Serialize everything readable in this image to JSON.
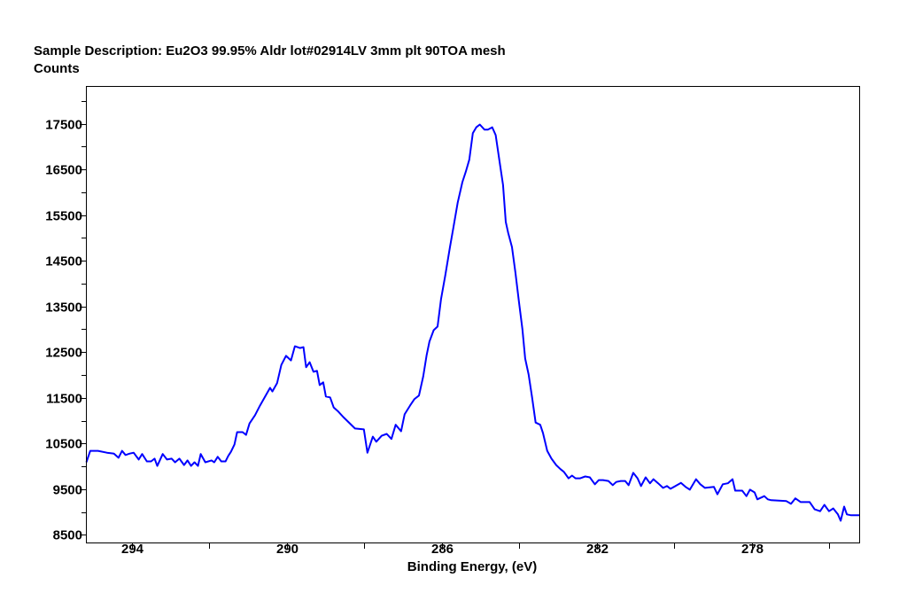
{
  "chart_data": {
    "type": "line",
    "title": "Sample Description:  Eu2O3 99.95% Aldr lot#02914LV 3mm plt 90TOA mesh",
    "ylabel": "Counts",
    "xlabel": "Binding Energy, (eV)",
    "xlim": [
      295.17,
      275.22
    ],
    "ylim": [
      8325,
      18315
    ],
    "x_ticks": [
      294,
      290,
      286,
      282,
      278
    ],
    "x_tick_labels": [
      "294",
      "290",
      "286",
      "282",
      "278"
    ],
    "x_minor_ticks": [
      292,
      288,
      284,
      280,
      276
    ],
    "y_ticks": [
      8500,
      9500,
      10500,
      11500,
      12500,
      13500,
      14500,
      15500,
      16500,
      17500
    ],
    "y_tick_labels": [
      "8500",
      "9500",
      "10500",
      "11500",
      "12500",
      "13500",
      "14500",
      "15500",
      "16500",
      "17500"
    ],
    "y_minor_ticks": [
      9000,
      10000,
      11000,
      12000,
      13000,
      14000,
      15000,
      16000,
      17000,
      18000
    ],
    "grid": false,
    "line_color": "#0000ff",
    "series": [
      {
        "name": "Eu2O3",
        "points": [
          [
            295.17,
            10090
          ],
          [
            295.07,
            10340
          ],
          [
            294.87,
            10340
          ],
          [
            294.64,
            10300
          ],
          [
            294.46,
            10280
          ],
          [
            294.34,
            10190
          ],
          [
            294.25,
            10340
          ],
          [
            294.16,
            10250
          ],
          [
            294.05,
            10280
          ],
          [
            293.95,
            10300
          ],
          [
            293.82,
            10150
          ],
          [
            293.73,
            10270
          ],
          [
            293.61,
            10110
          ],
          [
            293.5,
            10110
          ],
          [
            293.41,
            10170
          ],
          [
            293.34,
            10010
          ],
          [
            293.2,
            10270
          ],
          [
            293.09,
            10150
          ],
          [
            292.97,
            10170
          ],
          [
            292.88,
            10090
          ],
          [
            292.77,
            10170
          ],
          [
            292.65,
            10030
          ],
          [
            292.56,
            10130
          ],
          [
            292.47,
            10010
          ],
          [
            292.38,
            10090
          ],
          [
            292.29,
            10010
          ],
          [
            292.22,
            10270
          ],
          [
            292.1,
            10090
          ],
          [
            291.94,
            10130
          ],
          [
            291.87,
            10090
          ],
          [
            291.78,
            10210
          ],
          [
            291.69,
            10110
          ],
          [
            291.58,
            10110
          ],
          [
            291.51,
            10230
          ],
          [
            291.44,
            10320
          ],
          [
            291.35,
            10480
          ],
          [
            291.28,
            10750
          ],
          [
            291.14,
            10750
          ],
          [
            291.05,
            10690
          ],
          [
            290.96,
            10940
          ],
          [
            290.82,
            11120
          ],
          [
            290.69,
            11330
          ],
          [
            290.57,
            11510
          ],
          [
            290.43,
            11720
          ],
          [
            290.37,
            11640
          ],
          [
            290.25,
            11820
          ],
          [
            290.14,
            12220
          ],
          [
            290.02,
            12420
          ],
          [
            289.89,
            12320
          ],
          [
            289.79,
            12630
          ],
          [
            289.66,
            12590
          ],
          [
            289.57,
            12610
          ],
          [
            289.5,
            12170
          ],
          [
            289.41,
            12280
          ],
          [
            289.31,
            12070
          ],
          [
            289.22,
            12090
          ],
          [
            289.15,
            11780
          ],
          [
            289.06,
            11840
          ],
          [
            288.99,
            11530
          ],
          [
            288.88,
            11510
          ],
          [
            288.79,
            11290
          ],
          [
            288.67,
            11200
          ],
          [
            288.54,
            11080
          ],
          [
            288.24,
            10830
          ],
          [
            288.01,
            10810
          ],
          [
            287.92,
            10300
          ],
          [
            287.78,
            10650
          ],
          [
            287.69,
            10540
          ],
          [
            287.55,
            10670
          ],
          [
            287.42,
            10710
          ],
          [
            287.3,
            10600
          ],
          [
            287.19,
            10910
          ],
          [
            287.05,
            10770
          ],
          [
            286.96,
            11140
          ],
          [
            286.82,
            11330
          ],
          [
            286.71,
            11470
          ],
          [
            286.59,
            11550
          ],
          [
            286.48,
            11970
          ],
          [
            286.39,
            12440
          ],
          [
            286.32,
            12730
          ],
          [
            286.21,
            12980
          ],
          [
            286.11,
            13060
          ],
          [
            286.02,
            13660
          ],
          [
            285.91,
            14180
          ],
          [
            285.79,
            14800
          ],
          [
            285.7,
            15230
          ],
          [
            285.59,
            15770
          ],
          [
            285.47,
            16220
          ],
          [
            285.38,
            16450
          ],
          [
            285.29,
            16710
          ],
          [
            285.2,
            17290
          ],
          [
            285.11,
            17420
          ],
          [
            285.02,
            17480
          ],
          [
            284.9,
            17370
          ],
          [
            284.81,
            17370
          ],
          [
            284.7,
            17420
          ],
          [
            284.61,
            17250
          ],
          [
            284.51,
            16670
          ],
          [
            284.42,
            16160
          ],
          [
            284.35,
            15350
          ],
          [
            284.29,
            15120
          ],
          [
            284.19,
            14800
          ],
          [
            284.1,
            14240
          ],
          [
            284.01,
            13600
          ],
          [
            283.92,
            13000
          ],
          [
            283.85,
            12360
          ],
          [
            283.76,
            12010
          ],
          [
            283.67,
            11510
          ],
          [
            283.58,
            10960
          ],
          [
            283.46,
            10910
          ],
          [
            283.39,
            10730
          ],
          [
            283.28,
            10340
          ],
          [
            283.17,
            10170
          ],
          [
            283.05,
            10030
          ],
          [
            282.94,
            9940
          ],
          [
            282.85,
            9880
          ],
          [
            282.73,
            9740
          ],
          [
            282.64,
            9800
          ],
          [
            282.55,
            9740
          ],
          [
            282.43,
            9740
          ],
          [
            282.3,
            9780
          ],
          [
            282.18,
            9760
          ],
          [
            282.05,
            9610
          ],
          [
            281.95,
            9700
          ],
          [
            281.84,
            9700
          ],
          [
            281.7,
            9680
          ],
          [
            281.59,
            9590
          ],
          [
            281.5,
            9660
          ],
          [
            281.38,
            9680
          ],
          [
            281.27,
            9680
          ],
          [
            281.18,
            9590
          ],
          [
            281.06,
            9860
          ],
          [
            280.95,
            9740
          ],
          [
            280.86,
            9570
          ],
          [
            280.74,
            9760
          ],
          [
            280.63,
            9630
          ],
          [
            280.54,
            9720
          ],
          [
            280.42,
            9630
          ],
          [
            280.29,
            9530
          ],
          [
            280.19,
            9570
          ],
          [
            280.1,
            9510
          ],
          [
            279.97,
            9570
          ],
          [
            279.83,
            9640
          ],
          [
            279.71,
            9550
          ],
          [
            279.6,
            9490
          ],
          [
            279.44,
            9720
          ],
          [
            279.33,
            9610
          ],
          [
            279.21,
            9530
          ],
          [
            278.98,
            9550
          ],
          [
            278.89,
            9390
          ],
          [
            278.75,
            9610
          ],
          [
            278.62,
            9630
          ],
          [
            278.5,
            9720
          ],
          [
            278.43,
            9470
          ],
          [
            278.25,
            9470
          ],
          [
            278.14,
            9350
          ],
          [
            278.05,
            9490
          ],
          [
            277.93,
            9430
          ],
          [
            277.86,
            9280
          ],
          [
            277.68,
            9350
          ],
          [
            277.59,
            9280
          ],
          [
            277.5,
            9260
          ],
          [
            277.11,
            9240
          ],
          [
            276.99,
            9180
          ],
          [
            276.88,
            9300
          ],
          [
            276.74,
            9220
          ],
          [
            276.51,
            9220
          ],
          [
            276.38,
            9060
          ],
          [
            276.24,
            9020
          ],
          [
            276.13,
            9160
          ],
          [
            276.01,
            9020
          ],
          [
            275.9,
            9080
          ],
          [
            275.78,
            8950
          ],
          [
            275.71,
            8810
          ],
          [
            275.62,
            9120
          ],
          [
            275.55,
            8950
          ],
          [
            275.44,
            8930
          ],
          [
            275.22,
            8930
          ]
        ]
      }
    ]
  }
}
